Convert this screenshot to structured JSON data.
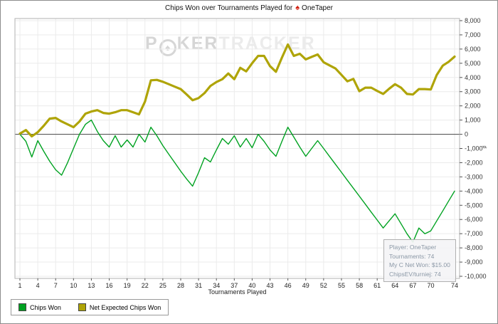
{
  "title": {
    "label": "Chips Won over Tournaments Played for",
    "icon_char": "♠",
    "player": "OneTaper"
  },
  "watermark": {
    "prefix": "P",
    "logo_char": "♠",
    "mid": "KER",
    "secondary": "TRACKER"
  },
  "axes": {
    "y_unit_glyph": "♯"
  },
  "chart_data": {
    "type": "line",
    "title": "Chips Won over Tournaments Played for OneTaper",
    "xlabel": "Tournaments Played",
    "ylabel": "",
    "grid": true,
    "legend_position": "bottom-left",
    "xlim": [
      1,
      74
    ],
    "ylim": [
      -10000,
      8000
    ],
    "x_ticks": [
      1,
      4,
      7,
      10,
      13,
      16,
      19,
      22,
      25,
      28,
      31,
      34,
      37,
      40,
      43,
      46,
      49,
      52,
      55,
      58,
      61,
      64,
      67,
      70,
      74
    ],
    "y_ticks": [
      8000,
      7000,
      6000,
      5000,
      4000,
      3000,
      2000,
      1000,
      0,
      -1000,
      -2000,
      -3000,
      -4000,
      -5000,
      -6000,
      -7000,
      -8000,
      -9000,
      -10000
    ],
    "x": [
      1,
      2,
      3,
      4,
      5,
      6,
      7,
      8,
      9,
      10,
      11,
      12,
      13,
      14,
      15,
      16,
      17,
      18,
      19,
      20,
      21,
      22,
      23,
      24,
      25,
      26,
      27,
      28,
      29,
      30,
      31,
      32,
      33,
      34,
      35,
      36,
      37,
      38,
      39,
      40,
      41,
      42,
      43,
      44,
      45,
      46,
      47,
      48,
      49,
      50,
      51,
      52,
      53,
      54,
      55,
      56,
      57,
      58,
      59,
      60,
      61,
      62,
      63,
      64,
      65,
      66,
      67,
      68,
      69,
      70,
      71,
      72,
      73,
      74
    ],
    "series": [
      {
        "name": "Chips Won",
        "color": "#00a221",
        "width": 1.4,
        "values": [
          0,
          -500,
          -1600,
          -450,
          -1200,
          -1900,
          -2500,
          -2880,
          -2000,
          -1000,
          0,
          700,
          1000,
          200,
          -450,
          -900,
          -100,
          -900,
          -400,
          -900,
          0,
          -550,
          500,
          -100,
          -800,
          -1400,
          -2000,
          -2600,
          -3150,
          -3650,
          -2700,
          -1650,
          -1950,
          -1100,
          -300,
          -700,
          -100,
          -900,
          -300,
          -950,
          0,
          -500,
          -1100,
          -1550,
          -500,
          500,
          -200,
          -900,
          -1550,
          -1000,
          -450,
          -1000,
          -1560,
          -2120,
          -2680,
          -3240,
          -3800,
          -4360,
          -4920,
          -5480,
          -6040,
          -6600,
          -6100,
          -5600,
          -6300,
          -7000,
          -7600,
          -6600,
          -7000,
          -6800,
          -6100,
          -5400,
          -4700,
          -4000
        ]
      },
      {
        "name": "Net Expected Chips Won",
        "color": "#afa407",
        "width": 3.2,
        "values": [
          50,
          300,
          -150,
          150,
          600,
          1100,
          1150,
          900,
          700,
          500,
          900,
          1450,
          1600,
          1700,
          1500,
          1450,
          1550,
          1700,
          1700,
          1550,
          1400,
          2300,
          3800,
          3830,
          3700,
          3530,
          3350,
          3180,
          2800,
          2400,
          2550,
          2900,
          3400,
          3680,
          3880,
          4280,
          3880,
          4680,
          4430,
          5000,
          5520,
          5520,
          4800,
          4400,
          5400,
          6320,
          5520,
          5670,
          5270,
          5450,
          5620,
          5070,
          4850,
          4630,
          4180,
          3730,
          3900,
          3030,
          3280,
          3280,
          3050,
          2840,
          3200,
          3530,
          3280,
          2840,
          2800,
          3180,
          3180,
          3150,
          4180,
          4830,
          5100,
          5470
        ]
      }
    ]
  },
  "legend": {
    "items": [
      {
        "label": "Chips Won",
        "color": "#00a221"
      },
      {
        "label": "Net Expected Chips Won",
        "color": "#afa407"
      }
    ]
  },
  "tooltip": {
    "rows": [
      "Player: OneTaper",
      "Tournaments: 74",
      "My C Net Won: $15.00",
      "ChipsEV/turniej: 74"
    ]
  }
}
